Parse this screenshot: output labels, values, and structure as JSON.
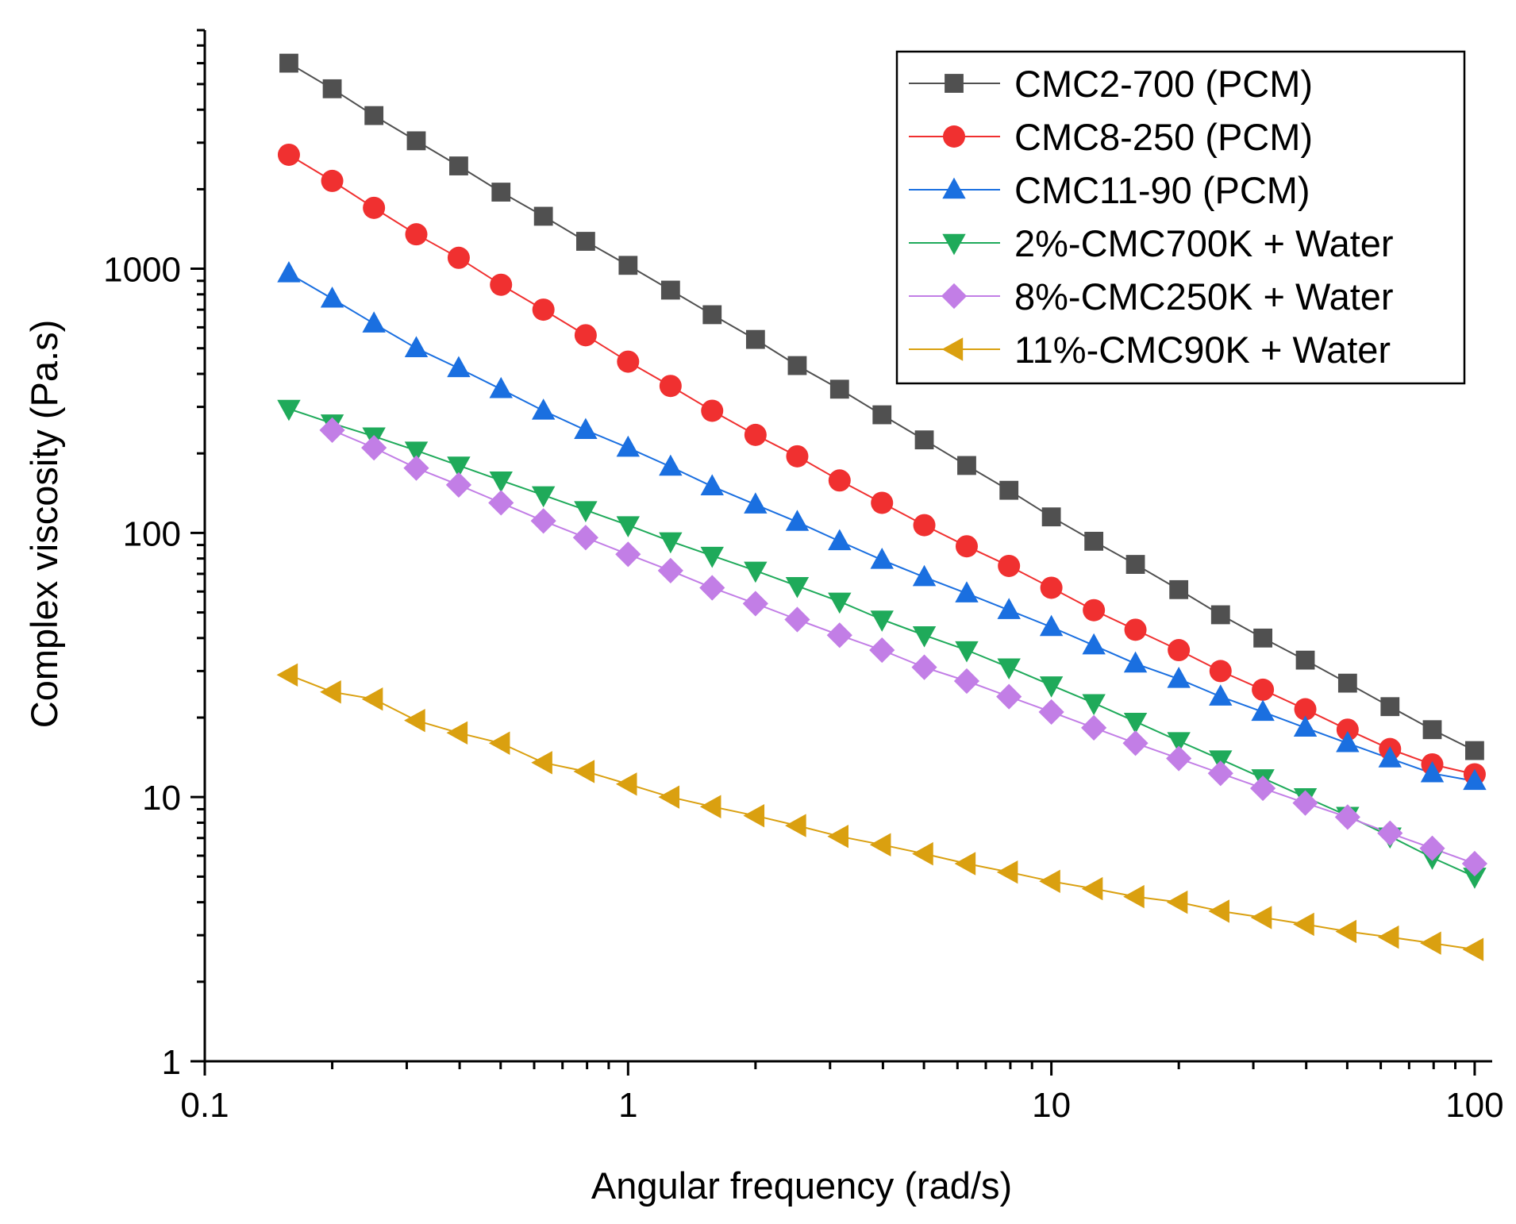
{
  "chart_data": {
    "type": "line",
    "xlabel": "Angular frequency (rad/s)",
    "ylabel": "Complex viscosity (Pa.s)",
    "xscale": "log",
    "yscale": "log",
    "xlim": [
      0.1,
      110
    ],
    "ylim": [
      1,
      8000
    ],
    "xticks": [
      0.1,
      1,
      10,
      100
    ],
    "xtick_labels": [
      "0.1",
      "1",
      "10",
      "100"
    ],
    "yticks": [
      1,
      10,
      100,
      1000
    ],
    "ytick_labels": [
      "1",
      "10",
      "100",
      "1000"
    ],
    "legend_position": "top-right",
    "x": [
      0.158,
      0.2,
      0.251,
      0.316,
      0.398,
      0.501,
      0.631,
      0.794,
      1,
      1.26,
      1.58,
      2,
      2.51,
      3.16,
      3.98,
      5.01,
      6.31,
      7.94,
      10,
      12.6,
      15.8,
      20,
      25.1,
      31.6,
      39.8,
      50.1,
      63.1,
      79.4,
      100
    ],
    "series": [
      {
        "name": "CMC2-700 (PCM)",
        "color": "#505050",
        "marker": "square",
        "values": [
          6000,
          4800,
          3800,
          3050,
          2450,
          1950,
          1580,
          1270,
          1030,
          830,
          670,
          540,
          430,
          350,
          280,
          225,
          180,
          145,
          115,
          93,
          76,
          61,
          49,
          40,
          33,
          27,
          22,
          18,
          15
        ]
      },
      {
        "name": "CMC8-250 (PCM)",
        "color": "#f03030",
        "marker": "circle",
        "values": [
          2700,
          2150,
          1700,
          1350,
          1100,
          870,
          700,
          560,
          445,
          360,
          290,
          235,
          195,
          158,
          130,
          107,
          89,
          75,
          62,
          51,
          43,
          36,
          30,
          25.5,
          21.5,
          18,
          15.2,
          13.3,
          12.2
        ]
      },
      {
        "name": "CMC11-90 (PCM)",
        "color": "#1a6fe0",
        "marker": "triangle-up",
        "values": [
          960,
          770,
          620,
          500,
          420,
          350,
          290,
          245,
          210,
          178,
          150,
          128,
          110,
          93,
          79,
          68,
          59,
          51,
          44,
          37.5,
          32,
          28,
          24,
          21,
          18.3,
          16,
          14,
          12.3,
          11.5
        ]
      },
      {
        "name": "2%-CMC700K + Water",
        "color": "#1faa5a",
        "marker": "triangle-down",
        "values": [
          295,
          260,
          232,
          205,
          180,
          158,
          139,
          122,
          107,
          93,
          82,
          72,
          63,
          55,
          47,
          41,
          36,
          31,
          26.5,
          22.7,
          19.3,
          16.3,
          13.9,
          11.8,
          10,
          8.5,
          7.1,
          5.9,
          5
        ]
      },
      {
        "name": "8%-CMC250K + Water",
        "color": "#c27ee6",
        "marker": "diamond",
        "x": [
          0.2,
          0.251,
          0.316,
          0.398,
          0.501,
          0.631,
          0.794,
          1,
          1.26,
          1.58,
          2,
          2.51,
          3.16,
          3.98,
          5.01,
          6.31,
          7.94,
          10,
          12.6,
          15.8,
          20,
          25.1,
          31.6,
          39.8,
          50.1,
          63.1,
          79.4,
          100
        ],
        "values": [
          245,
          210,
          176,
          152,
          130,
          111,
          96,
          83,
          72,
          62,
          54,
          47,
          41,
          36,
          31,
          27.5,
          24,
          21,
          18.3,
          16,
          14,
          12.3,
          10.8,
          9.5,
          8.4,
          7.3,
          6.4,
          5.6
        ]
      },
      {
        "name": "11%-CMC90K + Water",
        "color": "#daa010",
        "marker": "triangle-left",
        "values": [
          29,
          25,
          23.5,
          19.5,
          17.5,
          16,
          13.5,
          12.5,
          11.2,
          10,
          9.2,
          8.5,
          7.8,
          7.1,
          6.6,
          6.1,
          5.6,
          5.2,
          4.8,
          4.5,
          4.2,
          4,
          3.7,
          3.5,
          3.3,
          3.1,
          2.95,
          2.8,
          2.65
        ]
      }
    ]
  }
}
